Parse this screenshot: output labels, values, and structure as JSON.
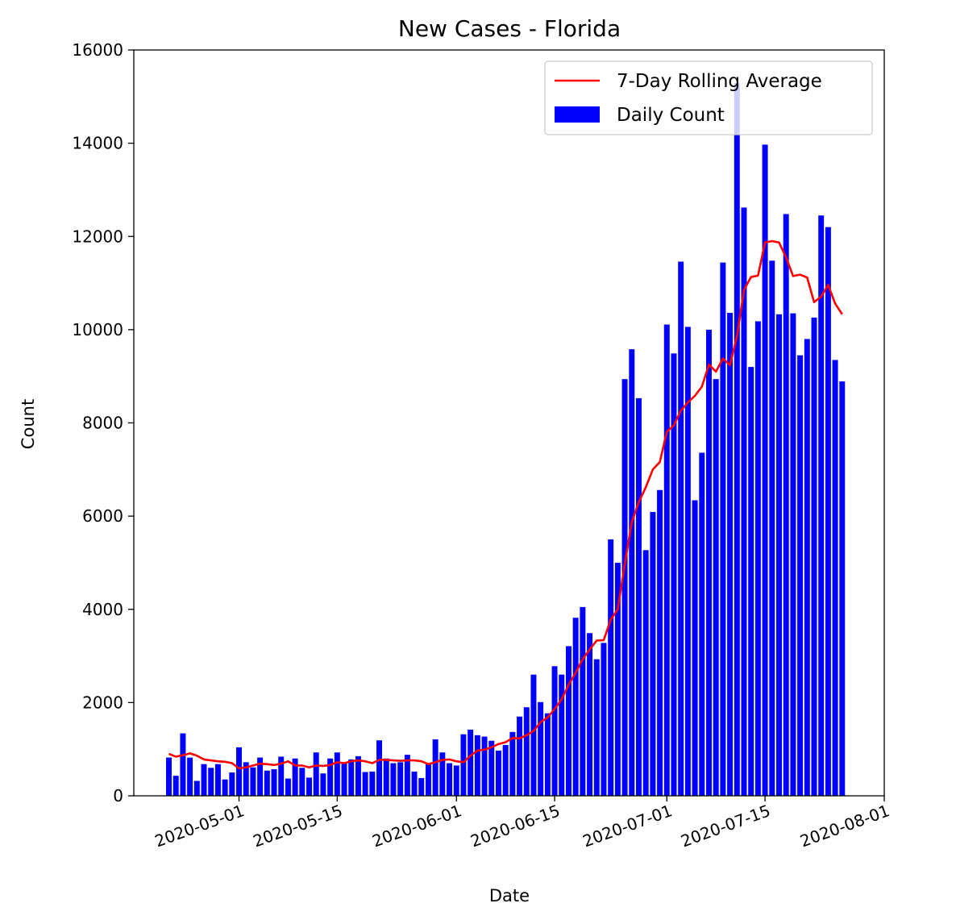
{
  "chart_data": {
    "type": "bar",
    "title": "New Cases - Florida",
    "xlabel": "Date",
    "ylabel": "Count",
    "ylim": [
      0,
      16000
    ],
    "xlim": [
      "2020-04-16",
      "2020-08-01"
    ],
    "yticks": [
      0,
      2000,
      4000,
      6000,
      8000,
      10000,
      12000,
      14000,
      16000
    ],
    "xticks": [
      "2020-05-01",
      "2020-05-15",
      "2020-06-01",
      "2020-06-15",
      "2020-07-01",
      "2020-07-15",
      "2020-08-01"
    ],
    "start_date": "2020-04-21",
    "legend_position": "top-right",
    "series": [
      {
        "name": "Daily Count",
        "type": "bar",
        "color": "#0000ff",
        "values": [
          820,
          430,
          1340,
          820,
          320,
          680,
          600,
          680,
          350,
          500,
          1040,
          720,
          610,
          820,
          540,
          570,
          840,
          370,
          800,
          600,
          390,
          930,
          480,
          800,
          930,
          720,
          780,
          850,
          510,
          520,
          1190,
          800,
          700,
          720,
          880,
          520,
          380,
          700,
          1210,
          930,
          700,
          650,
          1320,
          1420,
          1300,
          1270,
          1180,
          970,
          1090,
          1370,
          1700,
          1900,
          2600,
          2010,
          1770,
          2780,
          2600,
          3210,
          3820,
          4050,
          3490,
          2930,
          3280,
          5500,
          5000,
          8940,
          9580,
          8530,
          5270,
          6090,
          6560,
          10110,
          9490,
          11460,
          10060,
          6340,
          7360,
          10000,
          8940,
          11440,
          10360,
          15290,
          12620,
          9200,
          10180,
          13970,
          11480,
          10330,
          12480,
          10350,
          9450,
          9800,
          10260,
          12450,
          12200,
          9350,
          8890
        ]
      },
      {
        "name": "7-Day Rolling Average",
        "type": "line",
        "color": "#ff0000",
        "values": [
          900,
          840,
          870,
          910,
          860,
          780,
          760,
          740,
          730,
          700,
          590,
          610,
          650,
          690,
          680,
          660,
          690,
          740,
          650,
          650,
          610,
          650,
          640,
          660,
          720,
          700,
          740,
          760,
          740,
          700,
          770,
          770,
          760,
          750,
          760,
          760,
          740,
          680,
          720,
          770,
          780,
          740,
          720,
          860,
          970,
          990,
          1040,
          1110,
          1150,
          1240,
          1230,
          1300,
          1390,
          1580,
          1680,
          1860,
          2070,
          2380,
          2640,
          2930,
          3140,
          3330,
          3340,
          3780,
          4000,
          4970,
          5870,
          6300,
          6620,
          7000,
          7160,
          7810,
          7950,
          8260,
          8440,
          8580,
          8780,
          9250,
          9100,
          9380,
          9240,
          9860,
          10850,
          11130,
          11160,
          11870,
          11900,
          11870,
          11550,
          11150,
          11180,
          11120,
          10590,
          10710,
          10960,
          10560,
          10330
        ]
      }
    ]
  }
}
